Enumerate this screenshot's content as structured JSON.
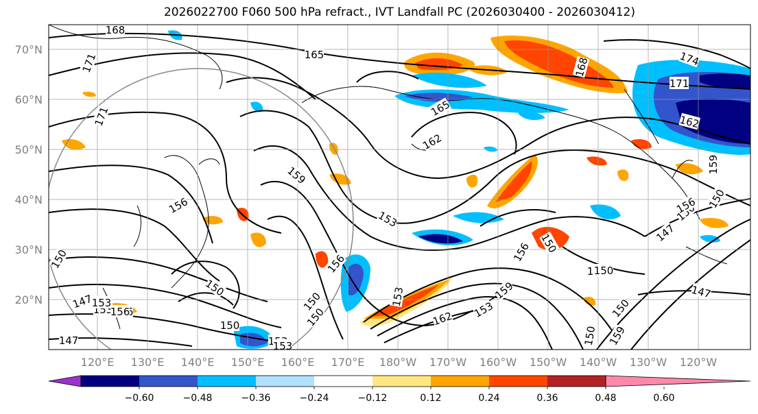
{
  "title": "2026022700 F060 500 hPa refract., IVT Landfall PC (2026030400 - 2026030412)",
  "map": {
    "lat_labels": [
      "70°N",
      "60°N",
      "50°N",
      "40°N",
      "30°N",
      "20°N"
    ],
    "lon_labels": [
      "120°E",
      "130°E",
      "140°E",
      "150°E",
      "160°E",
      "170°E",
      "180°W",
      "170°W",
      "160°W",
      "150°W",
      "140°W",
      "130°W",
      "120°W"
    ],
    "contour_labels": [
      "168",
      "165",
      "171",
      "171",
      "168",
      "174",
      "171",
      "165",
      "162",
      "162",
      "159",
      "156",
      "153",
      "156",
      "150",
      "150",
      "150",
      "147",
      "153",
      "156",
      "153",
      "156",
      "150",
      "147",
      "147",
      "150",
      "159",
      "153",
      "162",
      "150",
      "147",
      "153",
      "159",
      "150",
      "150",
      "147",
      "156",
      "159",
      "150",
      "150",
      "156",
      "153",
      "153",
      "150"
    ],
    "features": [
      "coastlines",
      "contours",
      "shading",
      "circle",
      "gridlines"
    ]
  },
  "colorbar": {
    "tick_labels": [
      "−0.60",
      "−0.48",
      "−0.36",
      "−0.24",
      "−0.12",
      "0.12",
      "0.24",
      "0.36",
      "0.48",
      "0.60"
    ],
    "colors": [
      "#9933cc",
      "#000080",
      "#3355cc",
      "#00bfff",
      "#b0e0ff",
      "#ffffff",
      "#ffe680",
      "#ffa500",
      "#ff4500",
      "#b22222",
      "#ff88aa"
    ]
  }
}
